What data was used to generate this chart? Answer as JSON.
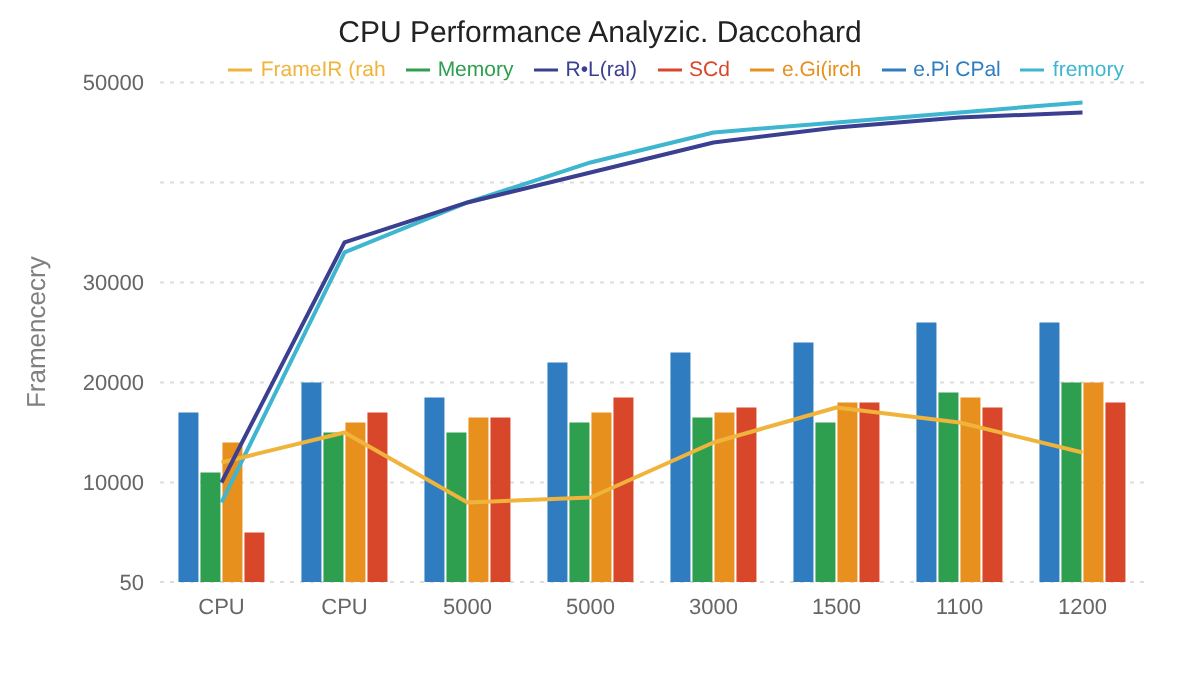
{
  "chart_data": {
    "type": "bar",
    "title": "CPU Performance Analyzic. Daccohard",
    "ylabel": "Framencecry",
    "categories": [
      "CPU",
      "CPU",
      "5000",
      "5000",
      "3000",
      "1500",
      "1100",
      "1200"
    ],
    "series": [
      {
        "name": "e.Pi CPal",
        "color": "#2f7dc0",
        "values": [
          17000,
          20000,
          18500,
          22000,
          23000,
          24000,
          26000,
          26000
        ]
      },
      {
        "name": "fremory",
        "type": "line",
        "color": "#3fb6cf",
        "values": [
          8000,
          33000,
          38000,
          42000,
          45000,
          46000,
          47000,
          48000
        ]
      },
      {
        "name": "Memory",
        "color": "#2e9e4f",
        "values": [
          11000,
          15000,
          15000,
          16000,
          16500,
          16000,
          19000,
          20000
        ]
      },
      {
        "name": "e.Gi(irch",
        "color": "#e8901e",
        "values": [
          14000,
          16000,
          16500,
          17000,
          17000,
          18000,
          18500,
          20000
        ]
      },
      {
        "name": "FrameIR (rah",
        "type": "line",
        "color": "#f0b43c",
        "values": [
          12000,
          15000,
          8000,
          8500,
          14000,
          17500,
          16000,
          13000
        ]
      },
      {
        "name": "R•L(ral)",
        "type": "line",
        "color": "#3a3f8f",
        "values": [
          10000,
          34000,
          38000,
          41000,
          44000,
          45500,
          46500,
          47000
        ]
      },
      {
        "name": "SCd",
        "color": "#d9472b",
        "values": [
          5000,
          17000,
          16500,
          18500,
          17500,
          18000,
          17500,
          18000
        ]
      }
    ],
    "ylim": [
      50,
      50000
    ],
    "yticks": [
      50,
      10000,
      20000,
      30000,
      {
        "value": 40000,
        "label": null
      },
      50000
    ],
    "grid": "y",
    "legend": "top right",
    "marker": "none"
  }
}
